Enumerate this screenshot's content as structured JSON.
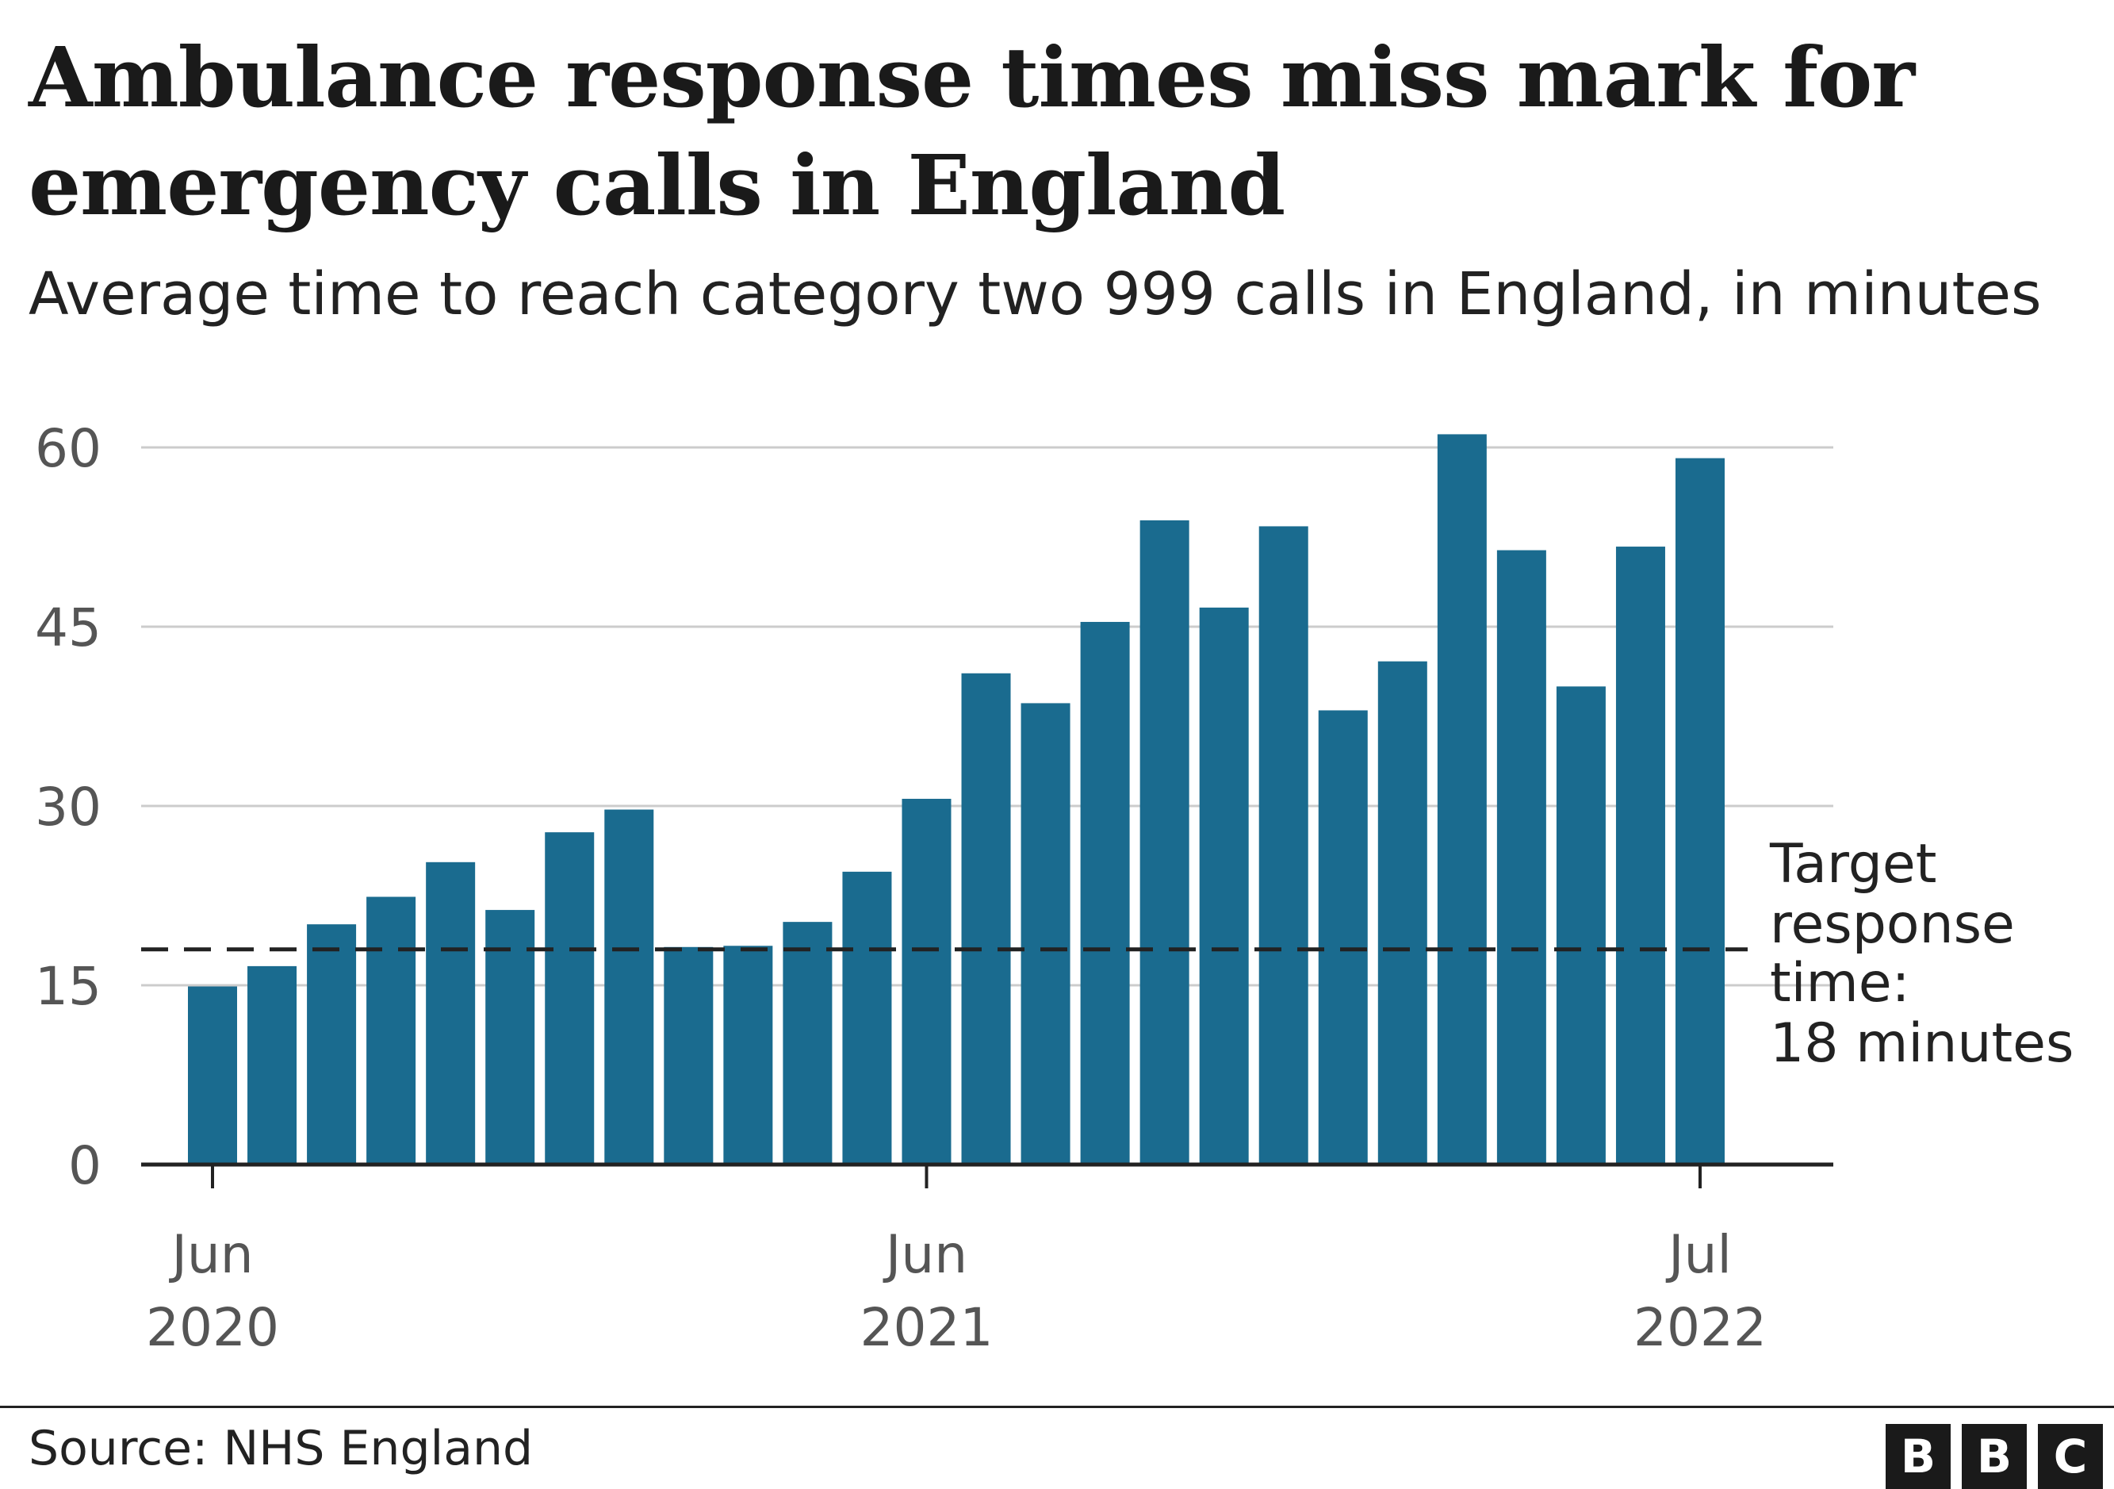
{
  "title": "Ambulance response times miss mark for emergency calls in England",
  "subtitle": "Average time to reach category two 999 calls in England, in minutes",
  "source": "Source: NHS England",
  "logo_letters": [
    "B",
    "B",
    "C"
  ],
  "colors": {
    "bar": "#1a6b8f",
    "grid": "#cccccc",
    "axis": "#222222",
    "target_line": "#222222"
  },
  "chart_data": {
    "type": "bar",
    "title": "Ambulance response times miss mark for emergency calls in England",
    "subtitle": "Average time to reach category two 999 calls in England, in minutes",
    "categories": [
      "2020-06",
      "2020-07",
      "2020-08",
      "2020-09",
      "2020-10",
      "2020-11",
      "2020-12",
      "2021-01",
      "2021-02",
      "2021-03",
      "2021-04",
      "2021-05",
      "2021-06",
      "2021-07",
      "2021-08",
      "2021-09",
      "2021-10",
      "2021-11",
      "2021-12",
      "2022-01",
      "2022-02",
      "2022-03",
      "2022-04",
      "2022-05",
      "2022-06",
      "2022-07"
    ],
    "values": [
      14.9,
      16.6,
      20.1,
      22.4,
      25.3,
      21.3,
      27.8,
      29.7,
      18.2,
      18.3,
      20.3,
      24.5,
      30.6,
      41.1,
      38.6,
      45.4,
      53.9,
      46.6,
      53.4,
      38.0,
      42.1,
      61.1,
      51.4,
      40.0,
      51.7,
      59.1
    ],
    "ylim": [
      0,
      60
    ],
    "yticks": [
      0,
      15,
      30,
      45,
      60
    ],
    "xticks": [
      {
        "category": "2020-06",
        "month": "Jun",
        "year": "2020"
      },
      {
        "category": "2021-06",
        "month": "Jun",
        "year": "2021"
      },
      {
        "category": "2022-07",
        "month": "Jul",
        "year": "2022"
      }
    ],
    "xlabel": "",
    "ylabel": "",
    "grid": true,
    "target": {
      "value": 18,
      "lines": [
        "Target",
        "response",
        "time:",
        "18 minutes"
      ]
    }
  }
}
